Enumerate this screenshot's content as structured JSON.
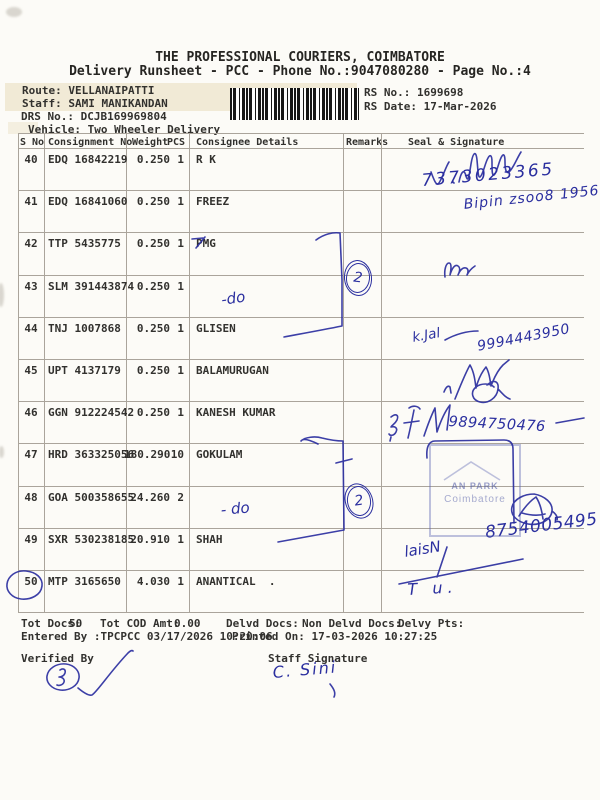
{
  "header": {
    "title1": "THE PROFESSIONAL COURIERS, COIMBATORE",
    "title2": "Delivery Runsheet - PCC - Phone No.:9047080280 - Page No.:4",
    "route_label": "Route:",
    "route_value": "VELLANAIPATTI",
    "staff_label": "Staff:",
    "staff_value": "SAMI MANIKANDAN",
    "drs_label": "DRS No.:",
    "drs_value": "DCJB169969804",
    "vehicle_label": "Vehicle:",
    "vehicle_value": "Two Wheeler Delivery",
    "rs_no_label": "RS No.:",
    "rs_no_value": "1699698",
    "rs_date_label": "RS Date:",
    "rs_date_value": "17-Mar-2026"
  },
  "table": {
    "headers": {
      "sno": "S No",
      "consignment": "Consignment No",
      "weight": "Weight",
      "pcs": "PCS",
      "consignee": "Consignee Details",
      "remarks": "Remarks",
      "seal": "Seal & Signature"
    },
    "rows": [
      {
        "sno": "40",
        "consignment": "EDQ 16842219",
        "weight": "0.250",
        "pcs": "1",
        "consignee": "R K"
      },
      {
        "sno": "41",
        "consignment": "EDQ 16841060",
        "weight": "0.250",
        "pcs": "1",
        "consignee": "FREEZ"
      },
      {
        "sno": "42",
        "consignment": "TTP 5435775",
        "weight": "0.250",
        "pcs": "1",
        "consignee": "PMG"
      },
      {
        "sno": "43",
        "consignment": "SLM 391443874",
        "weight": "0.250",
        "pcs": "1",
        "consignee": ""
      },
      {
        "sno": "44",
        "consignment": "TNJ 1007868",
        "weight": "0.250",
        "pcs": "1",
        "consignee": "GLISEN"
      },
      {
        "sno": "45",
        "consignment": "UPT 4137179",
        "weight": "0.250",
        "pcs": "1",
        "consignee": "BALAMURUGAN"
      },
      {
        "sno": "46",
        "consignment": "GGN 912224542",
        "weight": "0.250",
        "pcs": "1",
        "consignee": "KANESH KUMAR"
      },
      {
        "sno": "47",
        "consignment": "HRD 363325056",
        "weight": "180.290",
        "pcs": "10",
        "consignee": "GOKULAM"
      },
      {
        "sno": "48",
        "consignment": "GOA 500358655",
        "weight": "24.260",
        "pcs": "2",
        "consignee": ""
      },
      {
        "sno": "49",
        "consignment": "SXR 530238185",
        "weight": "20.910",
        "pcs": "1",
        "consignee": "SHAH"
      },
      {
        "sno": "50",
        "consignment": "MTP 3165650",
        "weight": "4.030",
        "pcs": "1",
        "consignee": "ANANTICAL  ."
      }
    ]
  },
  "summary": {
    "tot_docs_label": "Tot Docs:",
    "tot_docs_value": "50",
    "tot_cod_label": "Tot COD Amt:",
    "tot_cod_value": "0.00",
    "delvd_label": "Delvd Docs:",
    "non_delvd_label": "Non Delvd Docs:",
    "delvy_pts_label": "Delvy Pts:",
    "entered_by": "Entered By :TPCPCC 03/17/2026 10:20:06",
    "printed_on": "Printed On: 17-03-2026 10:27:25"
  },
  "footer": {
    "verified_label": "Verified By",
    "staff_sig_label": "Staff Signature"
  },
  "annotations": {
    "ink_color": "#2b2f9f",
    "phone_row40": "7373023365",
    "note_row41": "Bipin zsoo8 1956.",
    "ditto_row43": "-do",
    "name_row44": "k.Jal",
    "phone_row44": "9994443950",
    "phone_row46": "9894750476",
    "ditto_row48": "- do",
    "phone_row49": "8754005495",
    "note_row49": "laisN",
    "note_row50": "T u.",
    "remark_group_42_44": "2",
    "remark_group_47_49": "2",
    "staff_signature_text": "C. Sini",
    "stamp_line1": "AN PARK",
    "stamp_line2": "Coimbatore"
  }
}
